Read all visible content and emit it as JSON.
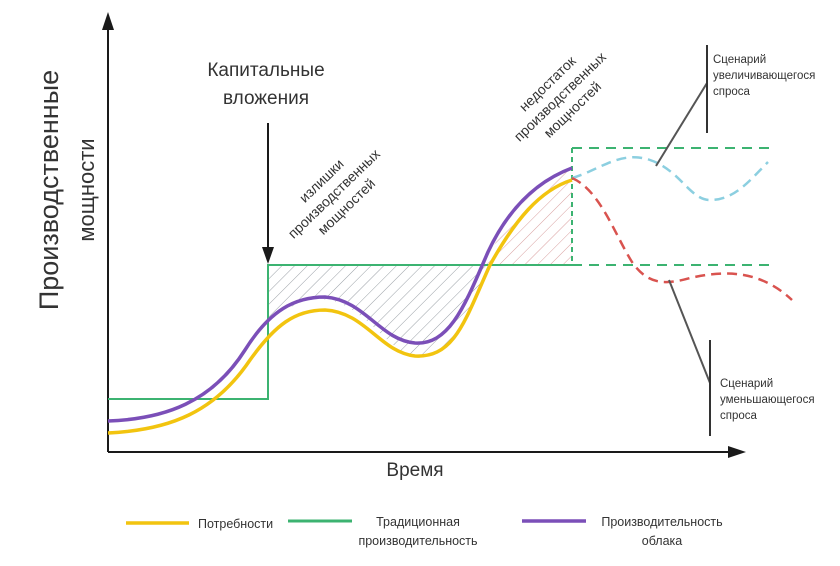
{
  "axes": {
    "y_label_line1": "Производственные",
    "y_label_line2": "мощности",
    "x_label": "Время"
  },
  "annotations": {
    "capex_line1": "Капитальные",
    "capex_line2": "вложения",
    "excess_line1": "излишки",
    "excess_line2": "производственных",
    "excess_line3": "мощностей",
    "shortage_line1": "недостаток",
    "shortage_line2": "производственных",
    "shortage_line3": "мощностей",
    "increase_line1": "Сценарий",
    "increase_line2": "увеличивающегося",
    "increase_line3": "спроса",
    "decrease_line1": "Сценарий",
    "decrease_line2": "уменьшающегося",
    "decrease_line3": "спроса"
  },
  "legend": {
    "demand_label": "Потребности",
    "traditional_line1": "Традиционная",
    "traditional_line2": "производительность",
    "cloud_line1": "Производительность",
    "cloud_line2": "облака"
  },
  "colors": {
    "demand": "#f2c40f",
    "traditional": "#3cb371",
    "cloud": "#7b4fb8",
    "increase_scenario": "#8ccfe0",
    "decrease_scenario": "#d9534f",
    "hatch": "#9aa0a6",
    "axis": "#1a1a1a"
  }
}
